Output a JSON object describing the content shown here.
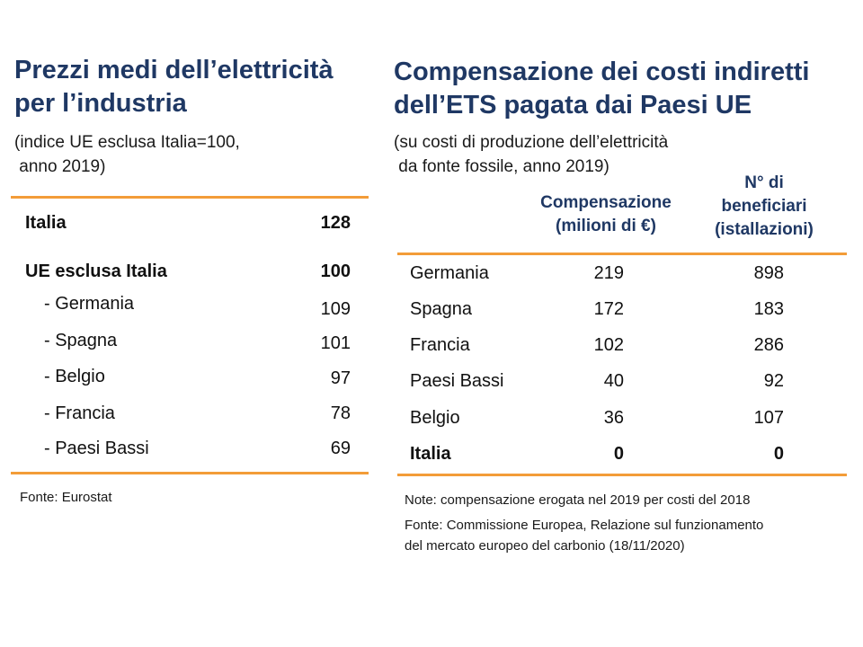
{
  "left": {
    "title_line1": "Prezzi medi dell’elettricità",
    "title_line2": "per l’industria",
    "subtitle_line1": "(indice UE esclusa Italia=100,",
    "subtitle_line2": " anno 2019)",
    "rows": [
      {
        "label": "Italia",
        "value": "128"
      },
      {
        "label": "UE esclusa Italia",
        "value": "100"
      },
      {
        "label": "- Germania",
        "value": "109"
      },
      {
        "label": "- Spagna",
        "value": "101"
      },
      {
        "label": "- Belgio",
        "value": "97"
      },
      {
        "label": "- Francia",
        "value": "78"
      },
      {
        "label": "- Paesi Bassi",
        "value": "69"
      }
    ],
    "source": "Fonte: Eurostat"
  },
  "right": {
    "title_line1": "Compensazione dei costi indiretti",
    "title_line2": "dell’ETS pagata dai Paesi UE",
    "subtitle_line1": "(su costi di produzione dell’elettricità",
    "subtitle_line2": " da fonte fossile, anno 2019)",
    "col1_line1": "Compensazione",
    "col1_line2": "(milioni di €)",
    "col2_line1": "N° di",
    "col2_line2": "beneficiari",
    "col2_line3": "(istallazioni)",
    "rows": [
      {
        "country": "Germania",
        "comp": "219",
        "ben": "898"
      },
      {
        "country": "Spagna",
        "comp": "172",
        "ben": "183"
      },
      {
        "country": "Francia",
        "comp": "102",
        "ben": "286"
      },
      {
        "country": "Paesi Bassi",
        "comp": "40",
        "ben": "92"
      },
      {
        "country": "Belgio",
        "comp": "36",
        "ben": "107"
      },
      {
        "country": "Italia",
        "comp": "0",
        "ben": "0"
      }
    ],
    "note": "Note: compensazione erogata nel 2019 per costi del 2018",
    "source_line1": "Fonte: Commissione Europea, Relazione sul funzionamento",
    "source_line2": "del mercato europeo del carbonio (18/11/2020)"
  },
  "colors": {
    "title": "#1f3864",
    "rule": "#f39c38"
  }
}
